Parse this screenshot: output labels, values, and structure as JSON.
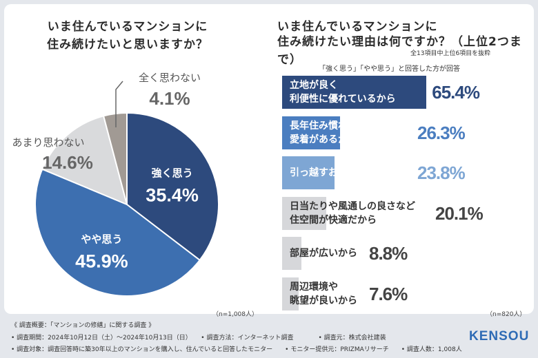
{
  "colors": {
    "strong": "#2d4a7d",
    "somewhat": "#3d6fb0",
    "not_much": "#d9dadc",
    "not_at_all": "#a19a94",
    "bar_top": "#2d4a7d",
    "bar_mid": "#4b7ec0",
    "bar_light": "#7ea6d4",
    "bar_gray": "#d6d7da",
    "value_dark": "#2d4a7d",
    "value_mid": "#4b7ec0",
    "value_light": "#7ea6d4",
    "value_gray": "#444444"
  },
  "left": {
    "title": "いま住んでいるマンションに\n住み続けたいと思いますか？",
    "n": "（n=1,008人）"
  },
  "right": {
    "title_line1": "いま住んでいるマンションに",
    "title_line2": "住み続けたい理由は何ですか？（上位2つまで）",
    "sub_note": "全13項目中上位6項目を抜粋",
    "question_note": "「強く思う」「やや思う」と回答した方が回答",
    "n": "（n=820人）"
  },
  "chart_data": [
    {
      "type": "pie",
      "title": "いま住んでいるマンションに住み続けたいと思いますか？",
      "slices": [
        {
          "label": "強く思う",
          "value": 35.4,
          "value_text": "35.4%"
        },
        {
          "label": "やや思う",
          "value": 45.9,
          "value_text": "45.9%"
        },
        {
          "label": "あまり思わない",
          "value": 14.6,
          "value_text": "14.6%"
        },
        {
          "label": "全く思わない",
          "value": 4.1,
          "value_text": "4.1%"
        }
      ]
    },
    {
      "type": "bar",
      "orientation": "horizontal",
      "title": "住み続けたい理由は何ですか？（上位2つまで）",
      "xlim": [
        0,
        100
      ],
      "categories": [
        "立地が良く\n利便性に優れているから",
        "長年住み慣れた環境への\n愛着があるから",
        "引っ越すお金がないから",
        "日当たりや風通しの良さなど\n住空間が快適だから",
        "部屋が広いから",
        "周辺環境や\n眺望が良いから"
      ],
      "values": [
        65.4,
        26.3,
        23.8,
        20.1,
        8.8,
        7.6
      ],
      "value_texts": [
        "65.4%",
        "26.3%",
        "23.8%",
        "20.1%",
        "8.8%",
        "7.6%"
      ]
    }
  ],
  "footer": {
    "line1": "《 調査概要：「マンションの修繕」に関する調査 》",
    "line2": "• 調査期間：2024年10月12日（土）〜2024年10月13日（日）　　• 調査方法：インターネット調査　　　　• 調査元：株式会社建装",
    "line3": "• 調査対象：調査回答時に築30年以上のマンションを購入し、住んでいると回答したモニター　　• モニター提供元：PRIZMAリサーチ　　• 調査人数：1,008人",
    "logo": "KENSOU"
  }
}
